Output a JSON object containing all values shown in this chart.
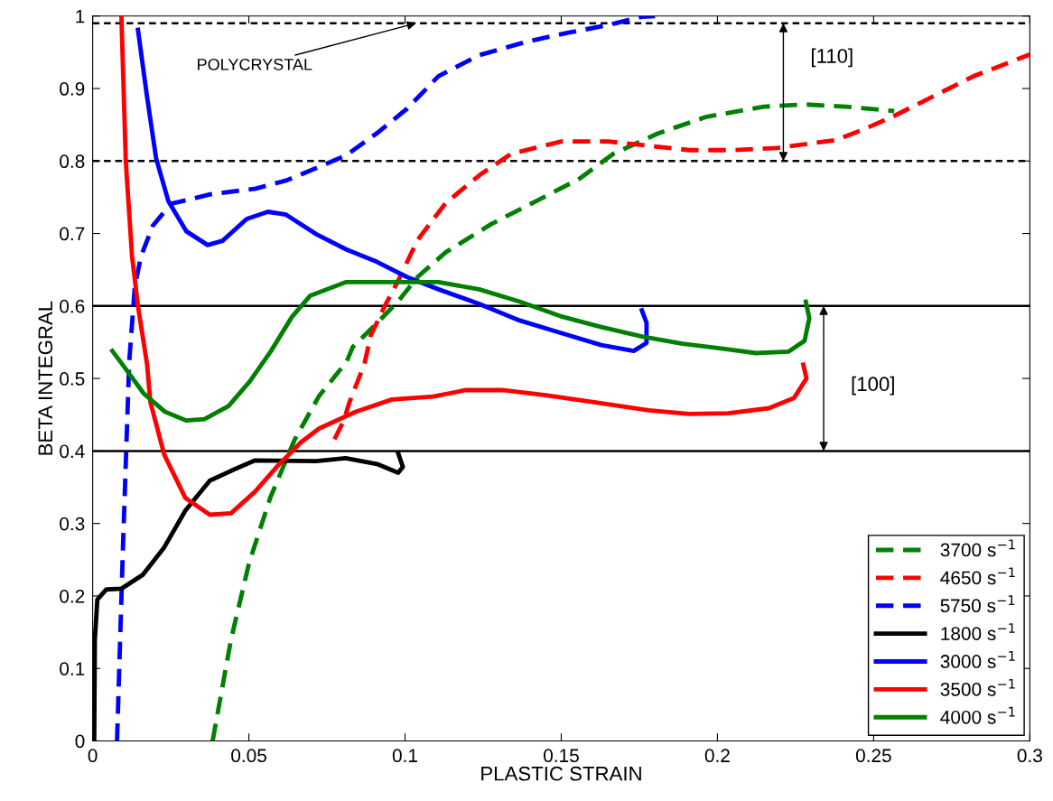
{
  "chart_data": {
    "type": "line",
    "xlabel": "PLASTIC STRAIN",
    "ylabel": "BETA INTEGRAL",
    "xlim": [
      0,
      0.3
    ],
    "ylim": [
      0,
      1
    ],
    "xticks": [
      0,
      0.05,
      0.1,
      0.15,
      0.2,
      0.25,
      0.3
    ],
    "yticks": [
      0,
      0.1,
      0.2,
      0.3,
      0.4,
      0.5,
      0.6,
      0.7,
      0.8,
      0.9,
      1
    ],
    "grid": false,
    "legend": "bottom right",
    "marker": "none",
    "series": [
      {
        "name": "3700 s$^{−1}$",
        "color": "#008000",
        "line_style": "dashed",
        "x": [
          0.0384,
          0.0443,
          0.0501,
          0.0569,
          0.0647,
          0.0725,
          0.0813,
          0.0832,
          0.09,
          0.0977,
          0.104,
          0.113,
          0.1276,
          0.143,
          0.156,
          0.1667,
          0.181,
          0.1965,
          0.2149,
          0.2279,
          0.241,
          0.2566
        ],
        "values": [
          0,
          0.14,
          0.246,
          0.336,
          0.416,
          0.476,
          0.523,
          0.543,
          0.572,
          0.606,
          0.64,
          0.674,
          0.713,
          0.747,
          0.776,
          0.81,
          0.838,
          0.861,
          0.875,
          0.878,
          0.875,
          0.869
        ]
      },
      {
        "name": "4650 s$^{−1}$",
        "color": "#ff0000",
        "line_style": "dashed",
        "x": [
          0.0774,
          0.0803,
          0.0822,
          0.087,
          0.089,
          0.0935,
          0.0977,
          0.104,
          0.113,
          0.124,
          0.134,
          0.15,
          0.165,
          0.178,
          0.191,
          0.205,
          0.219,
          0.238,
          0.247,
          0.256,
          0.269,
          0.282,
          0.3
        ],
        "values": [
          0.416,
          0.441,
          0.467,
          0.52,
          0.559,
          0.6,
          0.634,
          0.691,
          0.742,
          0.781,
          0.81,
          0.827,
          0.827,
          0.821,
          0.815,
          0.815,
          0.818,
          0.829,
          0.844,
          0.861,
          0.889,
          0.917,
          0.947
        ]
      },
      {
        "name": "5750 s$^{−1}$",
        "color": "#0000ff",
        "line_style": "dashed",
        "x": [
          0.0078,
          0.0088,
          0.0097,
          0.0107,
          0.0117,
          0.0135,
          0.0155,
          0.0193,
          0.0251,
          0.0377,
          0.0522,
          0.0619,
          0.0725,
          0.0812,
          0.0909,
          0.1006,
          0.1107,
          0.1237,
          0.1393,
          0.1523,
          0.1654,
          0.1758,
          0.18
        ],
        "values": [
          0,
          0.14,
          0.267,
          0.395,
          0.523,
          0.627,
          0.669,
          0.711,
          0.741,
          0.754,
          0.762,
          0.773,
          0.792,
          0.808,
          0.838,
          0.872,
          0.917,
          0.946,
          0.965,
          0.977,
          0.988,
          0.999,
          1.0
        ]
      },
      {
        "name": "1800 s$^{−1}$",
        "color": "#000000",
        "line_style": "solid",
        "x": [
          0.0005,
          0.0007,
          0.0015,
          0.0044,
          0.0092,
          0.016,
          0.0229,
          0.0297,
          0.0375,
          0.045,
          0.052,
          0.0715,
          0.081,
          0.091,
          0.0978,
          0.0993,
          0.0978
        ],
        "values": [
          0,
          0.14,
          0.195,
          0.209,
          0.21,
          0.229,
          0.267,
          0.318,
          0.359,
          0.374,
          0.387,
          0.386,
          0.39,
          0.382,
          0.37,
          0.378,
          0.397
        ]
      },
      {
        "name": "3000 s$^{−1}$",
        "color": "#0000ff",
        "line_style": "solid",
        "x": [
          0.0145,
          0.0174,
          0.0203,
          0.0242,
          0.03,
          0.0368,
          0.0416,
          0.0493,
          0.0561,
          0.0619,
          0.0716,
          0.0812,
          0.0909,
          0.1006,
          0.1107,
          0.1237,
          0.1367,
          0.1497,
          0.1628,
          0.1732,
          0.1773,
          0.1773,
          0.1758
        ],
        "values": [
          0.981,
          0.889,
          0.804,
          0.745,
          0.703,
          0.684,
          0.69,
          0.72,
          0.73,
          0.726,
          0.699,
          0.678,
          0.661,
          0.64,
          0.623,
          0.603,
          0.58,
          0.563,
          0.546,
          0.538,
          0.549,
          0.577,
          0.594
        ]
      },
      {
        "name": "3500 s$^{−1}$",
        "color": "#ff0000",
        "line_style": "solid",
        "x": [
          0.0092,
          0.0106,
          0.0126,
          0.0145,
          0.0174,
          0.0185,
          0.0229,
          0.0297,
          0.0375,
          0.0443,
          0.052,
          0.0589,
          0.0667,
          0.0725,
          0.0842,
          0.0958,
          0.109,
          0.1195,
          0.131,
          0.145,
          0.161,
          0.178,
          0.191,
          0.2035,
          0.2165,
          0.2245,
          0.2285,
          0.2275
        ],
        "values": [
          1.0,
          0.8,
          0.669,
          0.6,
          0.52,
          0.467,
          0.395,
          0.335,
          0.312,
          0.314,
          0.344,
          0.378,
          0.412,
          0.431,
          0.454,
          0.471,
          0.475,
          0.484,
          0.484,
          0.477,
          0.467,
          0.456,
          0.451,
          0.452,
          0.459,
          0.473,
          0.5,
          0.519
        ]
      },
      {
        "name": "4000 s$^{−1}$",
        "color": "#008000",
        "line_style": "solid",
        "x": [
          0.0063,
          0.0106,
          0.0164,
          0.0232,
          0.03,
          0.0358,
          0.0435,
          0.0503,
          0.0571,
          0.0638,
          0.0696,
          0.0812,
          0.0957,
          0.1107,
          0.1237,
          0.1367,
          0.1497,
          0.1628,
          0.1758,
          0.1888,
          0.2018,
          0.2123,
          0.2227,
          0.2279,
          0.2294,
          0.2283
        ],
        "values": [
          0.538,
          0.513,
          0.479,
          0.454,
          0.442,
          0.444,
          0.462,
          0.496,
          0.538,
          0.585,
          0.614,
          0.633,
          0.633,
          0.633,
          0.623,
          0.606,
          0.586,
          0.571,
          0.558,
          0.548,
          0.541,
          0.535,
          0.537,
          0.552,
          0.583,
          0.606
        ]
      }
    ],
    "ref_lines": [
      {
        "axis": "y",
        "value": 0.99,
        "color": "#000000",
        "line_style": "dashed"
      },
      {
        "axis": "y",
        "value": 0.8,
        "color": "#000000",
        "line_style": "dashed"
      },
      {
        "axis": "y",
        "value": 0.6,
        "color": "#000000",
        "line_style": "solid"
      },
      {
        "axis": "y",
        "value": 0.4,
        "color": "#000000",
        "line_style": "solid"
      }
    ],
    "annotations": [
      {
        "text": "POLYCRYSTAL",
        "x": 0.1035,
        "y": 0.99
      },
      "[110]",
      "[100]"
    ]
  }
}
